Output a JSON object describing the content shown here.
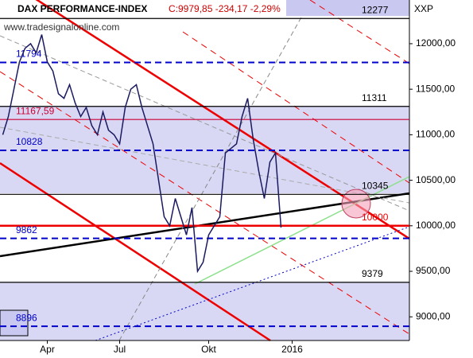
{
  "chart_data": {
    "type": "line",
    "title": "DAX PERFORMANCE-INDEX",
    "quote": "C:9979,85 -234,17 -2,29%",
    "symbol": "XXP",
    "source": "www.tradesignalonline.com",
    "categories": [
      null,
      null,
      null,
      null,
      null,
      null,
      null,
      null,
      "Apr",
      null,
      null,
      null,
      null,
      null,
      null,
      null,
      null,
      null,
      null,
      null,
      null,
      "Jul",
      null,
      null,
      null,
      null,
      null,
      null,
      null,
      null,
      null,
      null,
      null,
      null,
      null,
      null,
      null,
      "Okt",
      null,
      null,
      null,
      null,
      null,
      null,
      null,
      null,
      null,
      null,
      null,
      null,
      null,
      null,
      "2016",
      null,
      null,
      null,
      null,
      null,
      null,
      null,
      null,
      null,
      null,
      null,
      null,
      null,
      null,
      null,
      null,
      null,
      null,
      null,
      null,
      null
    ],
    "series": [
      {
        "name": "DAX",
        "color": "#1a1a60",
        "values": [
          11000,
          11200,
          11500,
          11800,
          11950,
          12000,
          11900,
          12100,
          11800,
          11700,
          11450,
          11400,
          11550,
          11350,
          11200,
          11300,
          11100,
          11000,
          11250,
          11050,
          11000,
          10900,
          11300,
          11500,
          11550,
          11300,
          11100,
          10900,
          10500,
          10100,
          10000,
          10300,
          10100,
          9900,
          10200,
          9500,
          9600,
          9900,
          10000,
          10100,
          10800,
          10850,
          10900,
          11200,
          11400,
          10950,
          10600,
          10300,
          10700,
          10800,
          9980,
          null,
          null,
          null,
          null,
          null,
          null,
          null,
          null,
          null,
          null,
          null,
          null,
          null,
          null,
          null,
          null,
          null,
          null,
          null,
          null,
          null,
          null,
          null
        ]
      }
    ],
    "ylim": [
      8740,
      12480
    ],
    "yticks": [
      {
        "value": 9000,
        "label": "9000,00"
      },
      {
        "value": 9500,
        "label": "9500,00"
      },
      {
        "value": 10000,
        "label": "10000,00"
      },
      {
        "value": 10500,
        "label": "10500,00"
      },
      {
        "value": 11000,
        "label": "11000,00"
      },
      {
        "value": 11500,
        "label": "11500,00"
      },
      {
        "value": 12000,
        "label": "12000,00"
      }
    ],
    "levels": [
      {
        "value": 12277,
        "color": "#000000",
        "style": "solid",
        "side": "right"
      },
      {
        "value": 11794,
        "color": "#0000cc",
        "style": "dashed",
        "side": "left"
      },
      {
        "value": 11311,
        "color": "#000000",
        "style": "solid",
        "side": "right"
      },
      {
        "value": 11167.59,
        "label": "11167,59",
        "color": "#cc0033",
        "style": "solid",
        "side": "left"
      },
      {
        "value": 10828,
        "color": "#0000cc",
        "style": "dashed",
        "side": "left"
      },
      {
        "value": 10345,
        "color": "#000000",
        "style": "solid",
        "side": "right"
      },
      {
        "value": 10000,
        "color": "#ee0000",
        "style": "thick",
        "side": "right"
      },
      {
        "value": 9862,
        "color": "#0000cc",
        "style": "dashed",
        "side": "left"
      },
      {
        "value": 9379,
        "color": "#000000",
        "style": "solid",
        "side": "right"
      },
      {
        "value": 8896,
        "color": "#0000cc",
        "style": "dashed",
        "side": "left"
      }
    ]
  }
}
